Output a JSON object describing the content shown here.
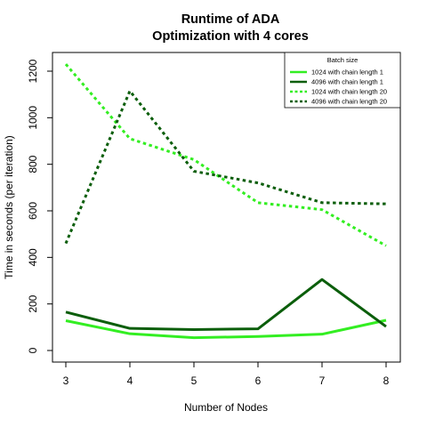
{
  "chart_data": {
    "type": "line",
    "title": "Runtime of ADA",
    "subtitle": "Optimization with 4 cores",
    "xlabel": "Number of Nodes",
    "ylabel": "Time in seconds (per iteration)",
    "x": [
      3,
      4,
      5,
      6,
      7,
      8
    ],
    "xlim": [
      3,
      8
    ],
    "ylim": [
      0,
      1200
    ],
    "x_ticks": [
      "3",
      "4",
      "5",
      "6",
      "7",
      "8"
    ],
    "y_ticks": [
      "0",
      "200",
      "400",
      "600",
      "800",
      "1000",
      "1200"
    ],
    "grid": false,
    "legend": {
      "title": "Batch size",
      "placement": "top-right"
    },
    "series": [
      {
        "name": "1024 with chain length 1",
        "values": [
          128,
          72,
          55,
          60,
          70,
          130
        ],
        "color": "#33ee22",
        "style": "solid"
      },
      {
        "name": "4096 with chain length 1",
        "values": [
          165,
          95,
          90,
          93,
          305,
          103
        ],
        "color": "#0b5e0b",
        "style": "solid"
      },
      {
        "name": "1024 with chain length 20",
        "values": [
          1230,
          910,
          820,
          635,
          605,
          450
        ],
        "color": "#33ee22",
        "style": "dotted"
      },
      {
        "name": "4096 with chain length 20",
        "values": [
          460,
          1115,
          770,
          720,
          635,
          630
        ],
        "color": "#0b5e0b",
        "style": "dotted"
      }
    ]
  }
}
